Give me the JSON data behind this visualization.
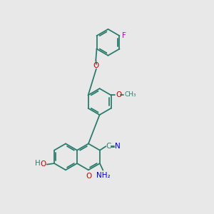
{
  "bg_color": "#e8e8e8",
  "bond_color": "#2d7d6e",
  "O_color": "#cc0000",
  "N_color": "#0000cc",
  "F_color": "#cc00cc",
  "figsize": [
    3.0,
    3.0
  ],
  "dpi": 100,
  "r": 0.62,
  "lw": 1.3,
  "fs": 7.5,
  "xlim": [
    0,
    10
  ],
  "ylim": [
    0,
    10
  ]
}
